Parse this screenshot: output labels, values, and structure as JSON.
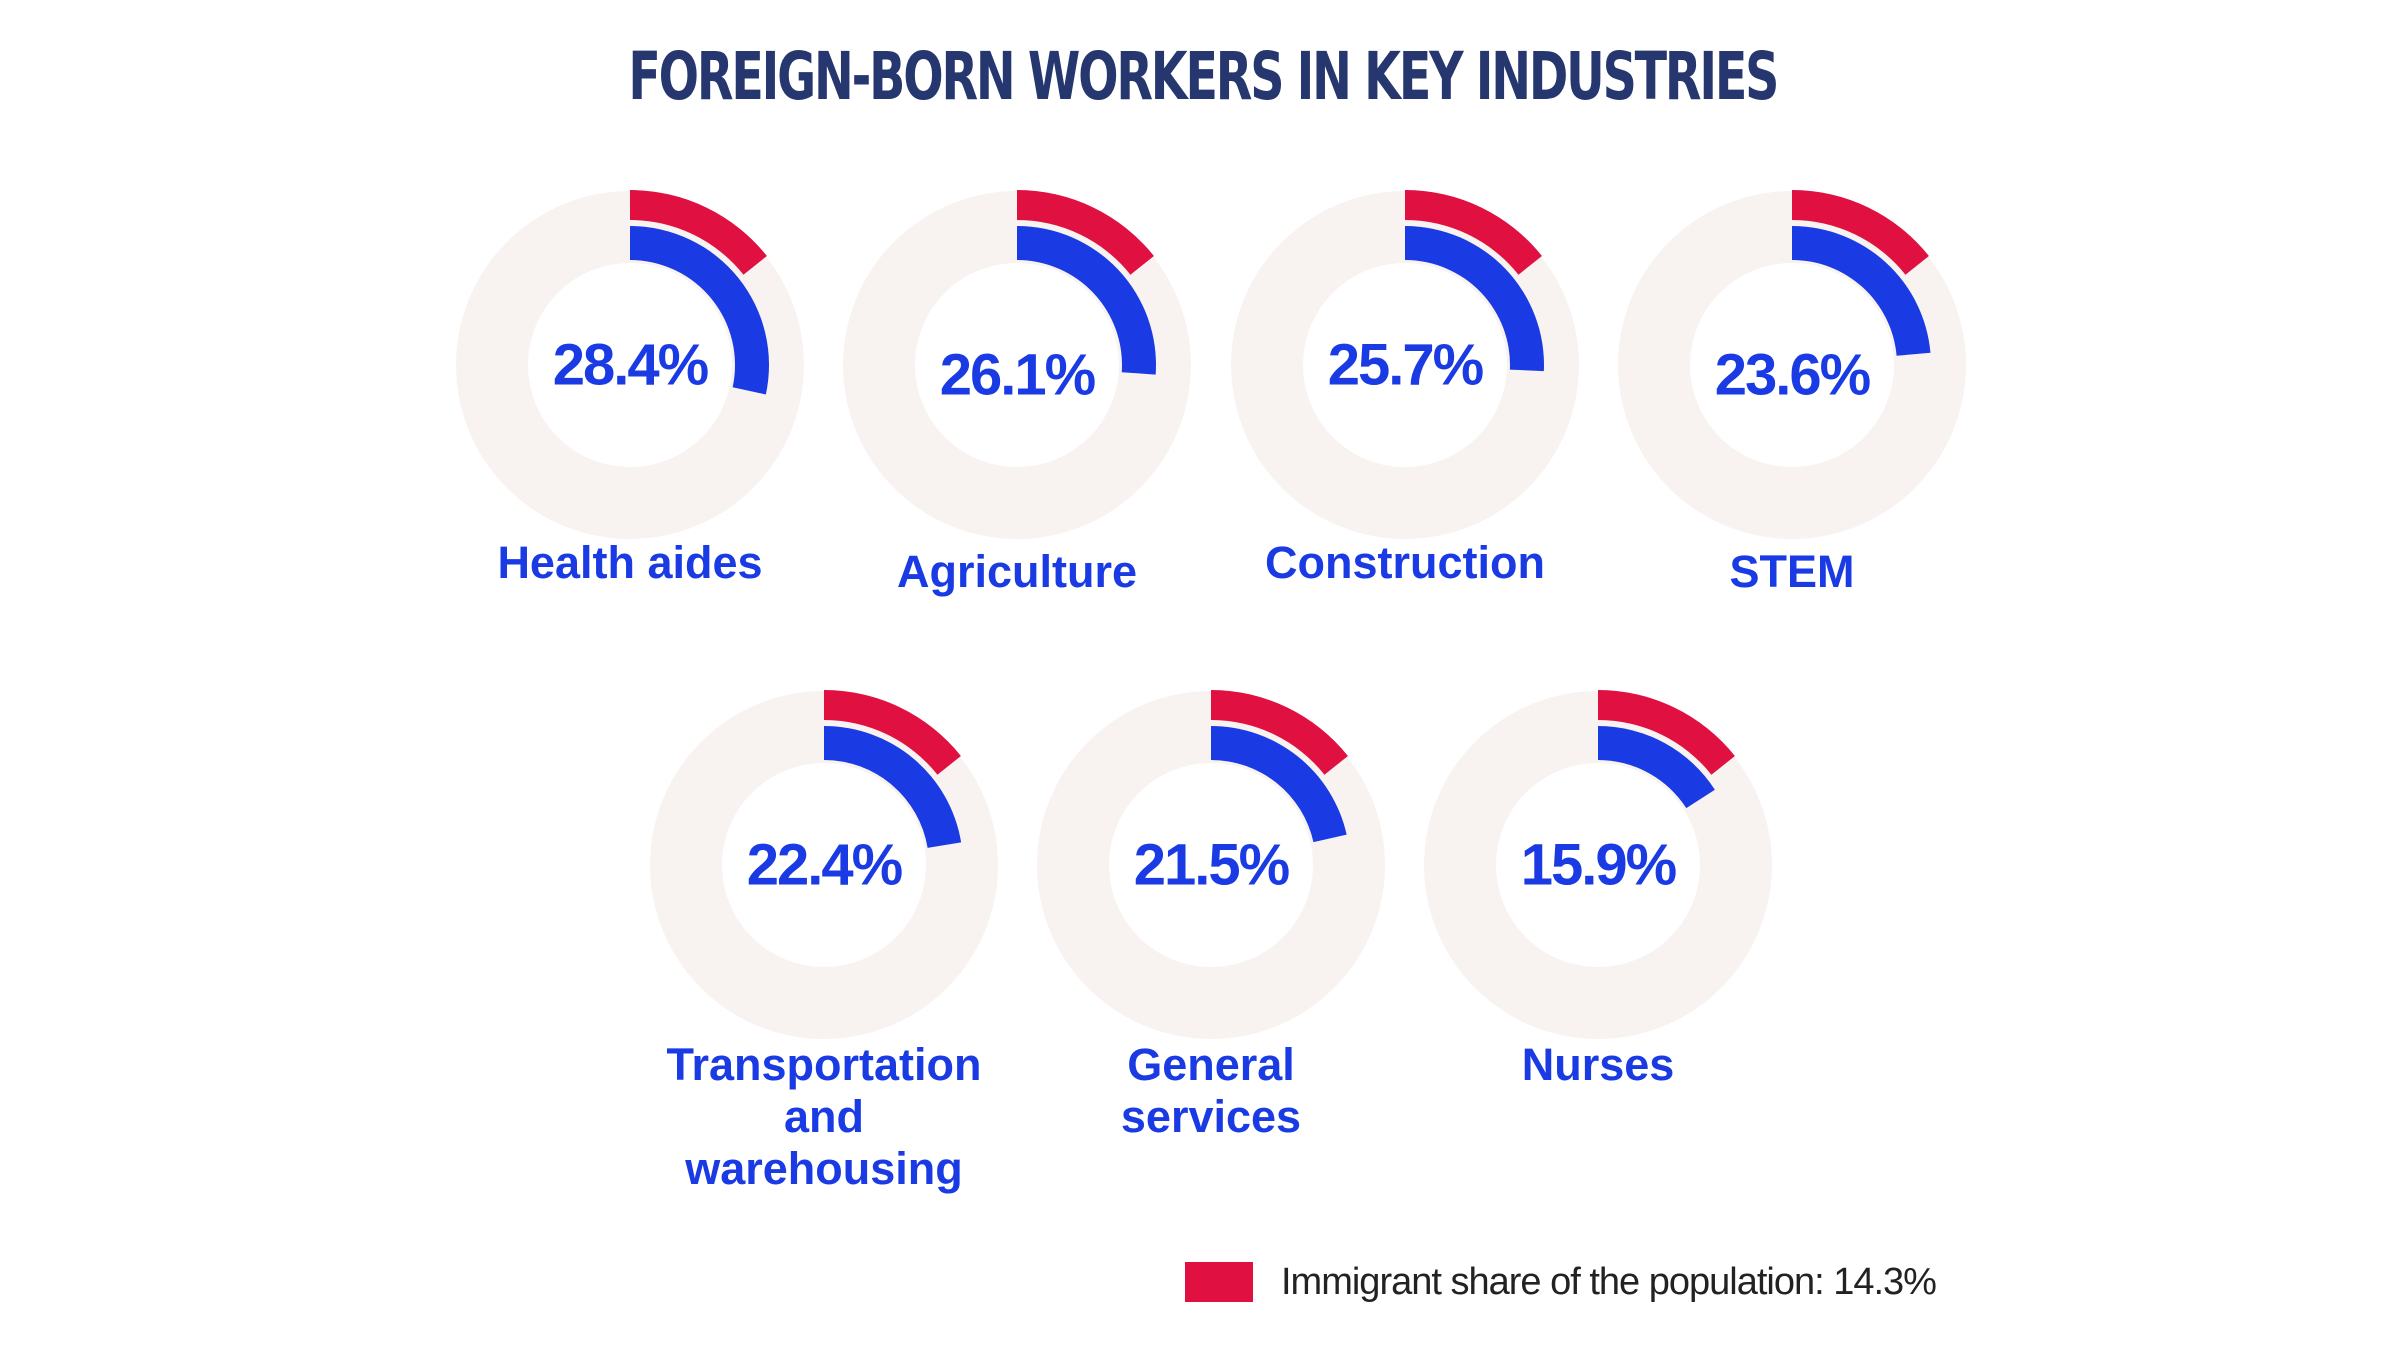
{
  "chart_data": {
    "type": "donut",
    "title": "FOREIGN-BORN WORKERS IN KEY INDUSTRIES",
    "unit": "%",
    "reference": {
      "name": "Immigrant share of the population: 14.3%",
      "value": 14.3
    },
    "categories": [
      [
        "Health aides"
      ],
      [
        "Agriculture"
      ],
      [
        "Construction"
      ],
      [
        "STEM"
      ],
      [
        "Transportation",
        "and",
        "warehousing"
      ],
      [
        "General",
        "services"
      ],
      [
        "Nurses"
      ]
    ],
    "values": [
      28.4,
      26.1,
      25.7,
      23.6,
      22.4,
      21.5,
      15.9
    ],
    "value_labels": [
      "28.4%",
      "26.1%",
      "25.7%",
      "23.6%",
      "22.4%",
      "21.5%",
      "15.9%"
    ],
    "colors": {
      "industry": "#1a3be3",
      "reference": "#e01040",
      "track": "#f8f3f1",
      "label": "#1a3be3",
      "title": "#26366e"
    }
  }
}
